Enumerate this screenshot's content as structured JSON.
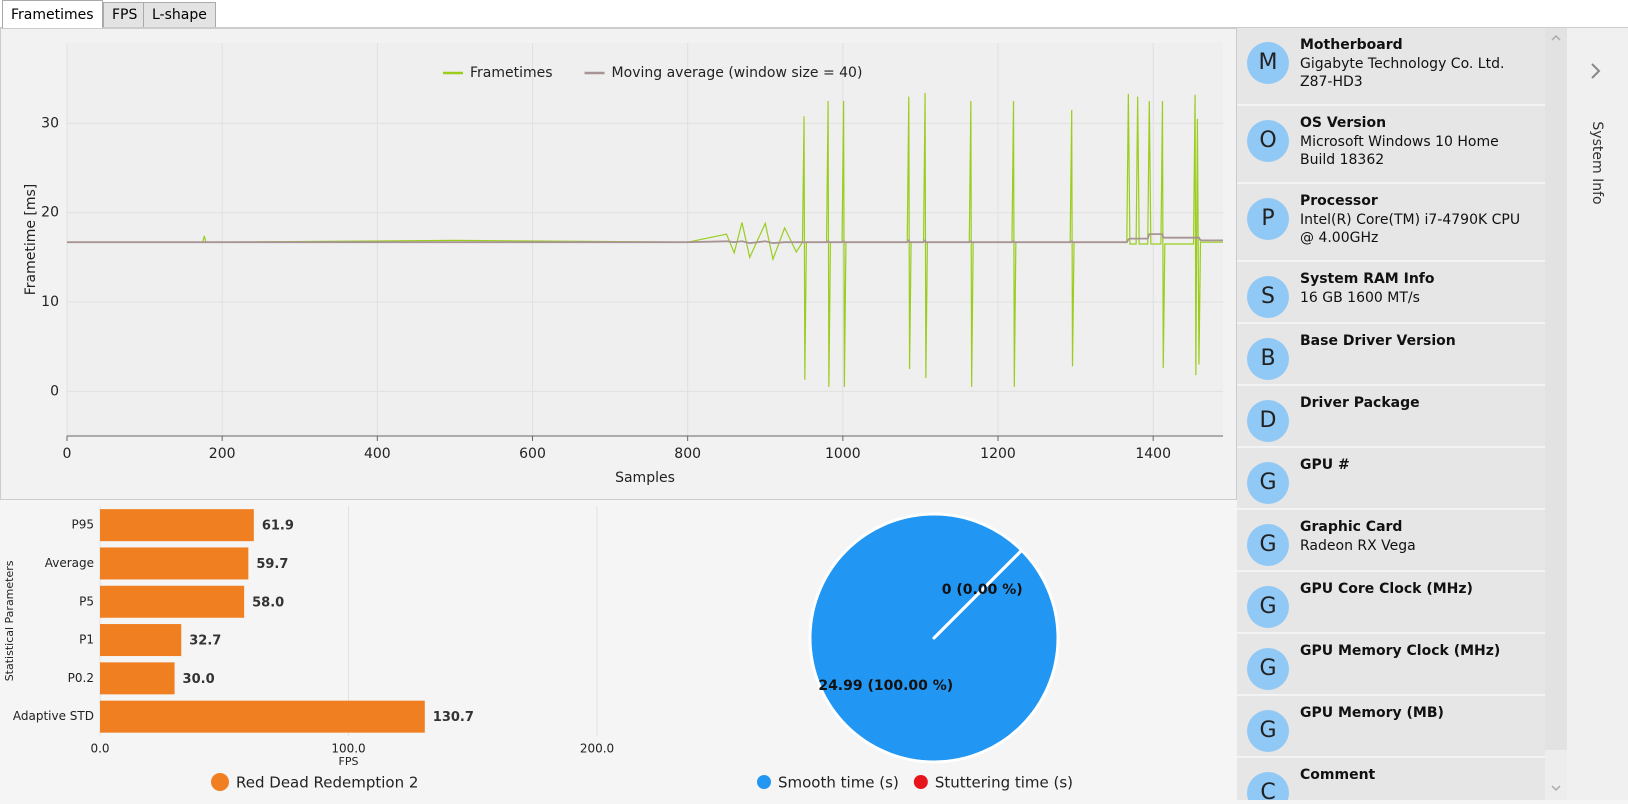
{
  "tabs": [
    "Frametimes",
    "FPS",
    "L-shape"
  ],
  "chart_data": [
    {
      "type": "line",
      "xlabel": "Samples",
      "ylabel": "Frametime [ms]",
      "xlim": [
        0,
        1490
      ],
      "ylim": [
        -5,
        39
      ],
      "xticks": [
        0,
        200,
        400,
        600,
        800,
        1000,
        1200,
        1400
      ],
      "yticks": [
        0,
        10,
        20,
        30
      ],
      "grid": true,
      "x": [
        0,
        175,
        177,
        179,
        500,
        800,
        850,
        860,
        870,
        880,
        900,
        910,
        925,
        940,
        948,
        950,
        951,
        953,
        979,
        981,
        982,
        984,
        999,
        1001,
        1002,
        1004,
        1083,
        1085,
        1086,
        1088,
        1104,
        1106,
        1107,
        1109,
        1163,
        1165,
        1166,
        1168,
        1218,
        1220,
        1221,
        1223,
        1293,
        1295,
        1296,
        1298,
        1366,
        1368,
        1370,
        1378,
        1380,
        1382,
        1393,
        1395,
        1397,
        1410,
        1412,
        1413,
        1415,
        1452,
        1454,
        1455,
        1457,
        1459,
        1461,
        1490
      ],
      "series": [
        {
          "name": "Frametimes",
          "color": "#9acd1e",
          "values": [
            16.7,
            16.7,
            17.4,
            16.7,
            16.9,
            16.7,
            17.6,
            15.5,
            18.9,
            15.0,
            18.8,
            14.8,
            18.3,
            15.6,
            16.7,
            30.8,
            1.3,
            16.7,
            16.7,
            32.5,
            0.5,
            16.7,
            16.7,
            32.5,
            0.5,
            16.7,
            16.7,
            33.0,
            2.5,
            16.7,
            16.7,
            33.4,
            1.5,
            16.7,
            16.7,
            32.5,
            0.5,
            16.7,
            16.7,
            32.5,
            0.5,
            16.7,
            16.7,
            31.5,
            2.8,
            16.7,
            16.7,
            33.3,
            16.5,
            16.5,
            33.0,
            16.5,
            16.5,
            32.5,
            16.5,
            16.5,
            32.5,
            2.6,
            16.5,
            16.5,
            33.2,
            1.8,
            30.5,
            3.0,
            16.7,
            16.7
          ]
        },
        {
          "name": "Moving average (window size = 40)",
          "color": "#a89494",
          "values": [
            16.7,
            16.7,
            16.7,
            16.7,
            16.7,
            16.7,
            16.8,
            16.7,
            16.8,
            16.6,
            16.8,
            16.6,
            16.7,
            16.7,
            16.7,
            16.7,
            16.7,
            16.7,
            16.7,
            16.8,
            16.7,
            16.7,
            16.7,
            16.8,
            16.7,
            16.7,
            16.7,
            16.9,
            16.7,
            16.7,
            16.7,
            16.9,
            16.7,
            16.7,
            16.7,
            16.8,
            16.7,
            16.7,
            16.7,
            16.8,
            16.7,
            16.7,
            16.7,
            16.8,
            16.7,
            16.7,
            16.7,
            17.0,
            17.1,
            17.1,
            17.1,
            17.1,
            17.1,
            17.6,
            17.6,
            17.6,
            17.6,
            17.2,
            17.2,
            17.2,
            17.2,
            17.2,
            17.2,
            17.2,
            16.9,
            16.9
          ]
        }
      ]
    },
    {
      "type": "hbar",
      "xlabel": "FPS",
      "ylabel": "Statistical Parameters",
      "categories": [
        "P95",
        "Average",
        "P5",
        "P1",
        "P0.2",
        "Adaptive STD"
      ],
      "xlim": [
        0,
        200
      ],
      "xticks": [
        {
          "value": 0,
          "label": "0.0"
        },
        {
          "value": 100,
          "label": "100.0"
        },
        {
          "value": 200,
          "label": "200.0"
        }
      ],
      "grid": true,
      "series": [
        {
          "name": "Red Dead Redemption 2",
          "color": "#f07f22",
          "values": [
            61.9,
            59.7,
            58.0,
            32.7,
            30.0,
            130.7
          ],
          "value_labels": [
            "61.9",
            "59.7",
            "58.0",
            "32.7",
            "30.0",
            "130.7"
          ]
        }
      ]
    },
    {
      "type": "pie",
      "categories": [
        "Smooth time (s)",
        "Stuttering time (s)"
      ],
      "values": [
        24.99,
        0
      ],
      "value_labels": [
        "24.99 (100.00 %)",
        "0 (0.00 %)"
      ],
      "colors": [
        "#2196f3",
        "#e8141b"
      ]
    }
  ],
  "system_info": {
    "title": "System Info",
    "items": [
      {
        "letter": "M",
        "label": "Motherboard",
        "value": "Gigabyte Technology Co. Ltd. Z87-HD3"
      },
      {
        "letter": "O",
        "label": "OS Version",
        "value": "Microsoft Windows 10 Home Build 18362"
      },
      {
        "letter": "P",
        "label": "Processor",
        "value": "Intel(R) Core(TM) i7-4790K CPU @ 4.00GHz"
      },
      {
        "letter": "S",
        "label": "System RAM Info",
        "value": "16 GB 1600 MT/s"
      },
      {
        "letter": "B",
        "label": "Base Driver Version"
      },
      {
        "letter": "D",
        "label": "Driver Package"
      },
      {
        "letter": "G",
        "label": "GPU #"
      },
      {
        "letter": "G",
        "label": "Graphic Card",
        "value": "Radeon RX Vega"
      },
      {
        "letter": "G",
        "label": "GPU Core Clock (MHz)"
      },
      {
        "letter": "G",
        "label": "GPU Memory Clock (MHz)"
      },
      {
        "letter": "G",
        "label": "GPU Memory (MB)"
      },
      {
        "letter": "C",
        "label": "Comment"
      }
    ]
  }
}
